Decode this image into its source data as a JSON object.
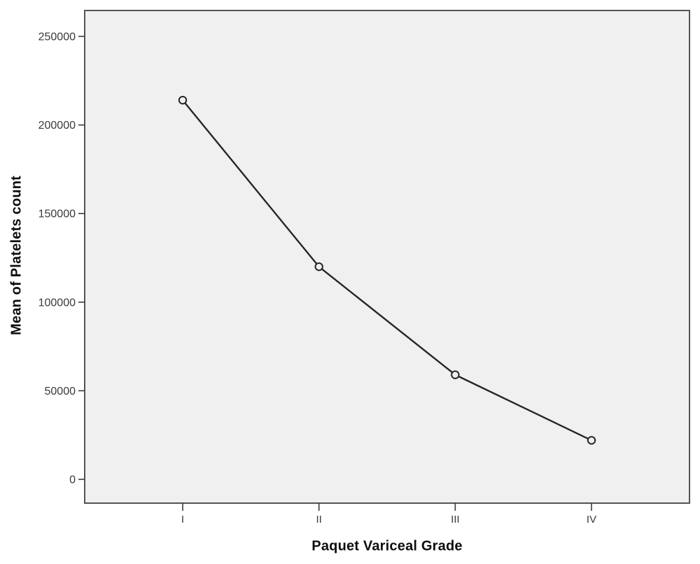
{
  "chart_data": {
    "type": "line",
    "title": "",
    "xlabel": "Paquet Variceal Grade",
    "ylabel": "Mean of Platelets count",
    "categories": [
      "I",
      "II",
      "III",
      "IV"
    ],
    "series": [
      {
        "name": "Mean of Platelets count",
        "values": [
          214000,
          120000,
          59000,
          22000
        ]
      }
    ],
    "yticks": [
      0,
      50000,
      100000,
      150000,
      200000,
      250000
    ],
    "ytick_labels": [
      "0",
      "50000",
      "100000",
      "150000",
      "200000",
      "250000"
    ],
    "ylim": [
      -13500,
      264500
    ],
    "grid": false,
    "legend_position": "none",
    "marker": "open-circle",
    "colors": {
      "line": "#262626",
      "marker_stroke": "#262626",
      "marker_fill": "#f0f0f0",
      "plot_background": "#f0f0f0",
      "frame": "#545454",
      "tick": "#3a3a3a",
      "tick_label": "#3a3a3a",
      "axis_title": "#0d0d0d",
      "page_background": "#ffffff"
    }
  }
}
